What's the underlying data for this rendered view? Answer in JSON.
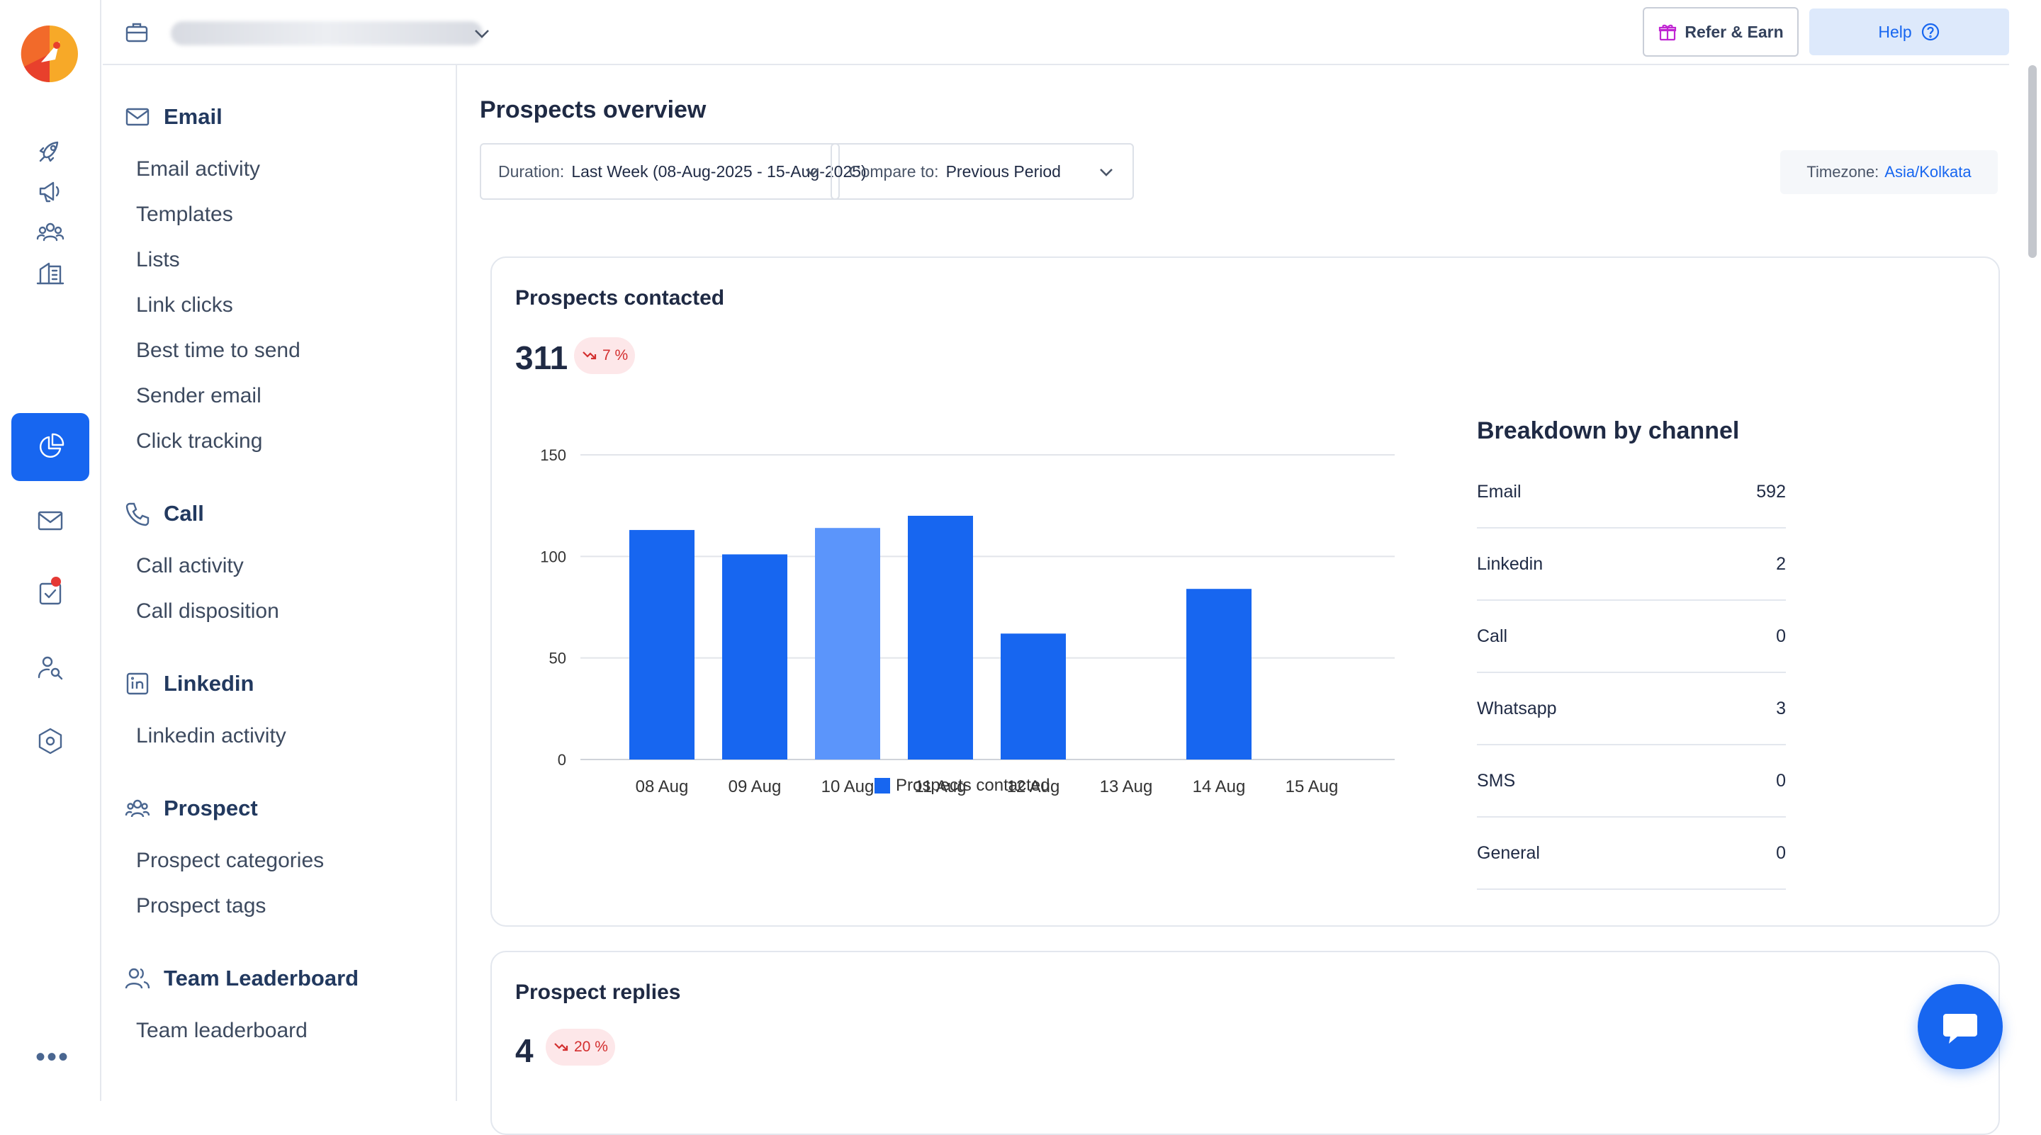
{
  "topbar": {
    "refer_label": "Refer & Earn",
    "help_label": "Help"
  },
  "sidebar": {
    "sections": [
      {
        "title": "Email",
        "icon": "mail-icon",
        "items": [
          "Email activity",
          "Templates",
          "Lists",
          "Link clicks",
          "Best time to send",
          "Sender email",
          "Click tracking"
        ]
      },
      {
        "title": "Call",
        "icon": "phone-icon",
        "items": [
          "Call activity",
          "Call disposition"
        ]
      },
      {
        "title": "Linkedin",
        "icon": "linkedin-icon",
        "items": [
          "Linkedin activity"
        ]
      },
      {
        "title": "Prospect",
        "icon": "users-icon",
        "items": [
          "Prospect categories",
          "Prospect tags"
        ]
      },
      {
        "title": "Team Leaderboard",
        "icon": "team-icon",
        "items": [
          "Team leaderboard"
        ]
      }
    ]
  },
  "main": {
    "title": "Prospects overview",
    "duration_label": "Duration:",
    "duration_value": "Last Week (08-Aug-2025 - 15-Aug-2025)",
    "compare_label": "Compare to:",
    "compare_value": "Previous Period",
    "timezone_label": "Timezone:",
    "timezone_value": "Asia/Kolkata"
  },
  "contacted_card": {
    "title": "Prospects contacted",
    "value": "311",
    "delta": "7 %",
    "delta_direction": "down",
    "breakdown_title": "Breakdown by channel",
    "breakdown": [
      {
        "label": "Email",
        "value": "592"
      },
      {
        "label": "Linkedin",
        "value": "2"
      },
      {
        "label": "Call",
        "value": "0"
      },
      {
        "label": "Whatsapp",
        "value": "3"
      },
      {
        "label": "SMS",
        "value": "0"
      },
      {
        "label": "General",
        "value": "0"
      }
    ]
  },
  "replies_card": {
    "title": "Prospect replies",
    "value": "4",
    "delta": "20 %",
    "delta_direction": "down"
  },
  "chart_data": {
    "type": "bar",
    "categories": [
      "08 Aug",
      "09 Aug",
      "10 Aug",
      "11 Aug",
      "12 Aug",
      "13 Aug",
      "14 Aug",
      "15 Aug"
    ],
    "series": [
      {
        "name": "Prospects contacted",
        "values": [
          113,
          101,
          114,
          120,
          62,
          0,
          84,
          0
        ]
      }
    ],
    "ylim": [
      0,
      150
    ],
    "yticks": [
      0,
      50,
      100,
      150
    ],
    "highlighted_category": "10 Aug",
    "colors": {
      "bar": "#1766f0",
      "bar_highlight": "#5b95fb"
    },
    "legend": "bottom",
    "grid": true
  }
}
